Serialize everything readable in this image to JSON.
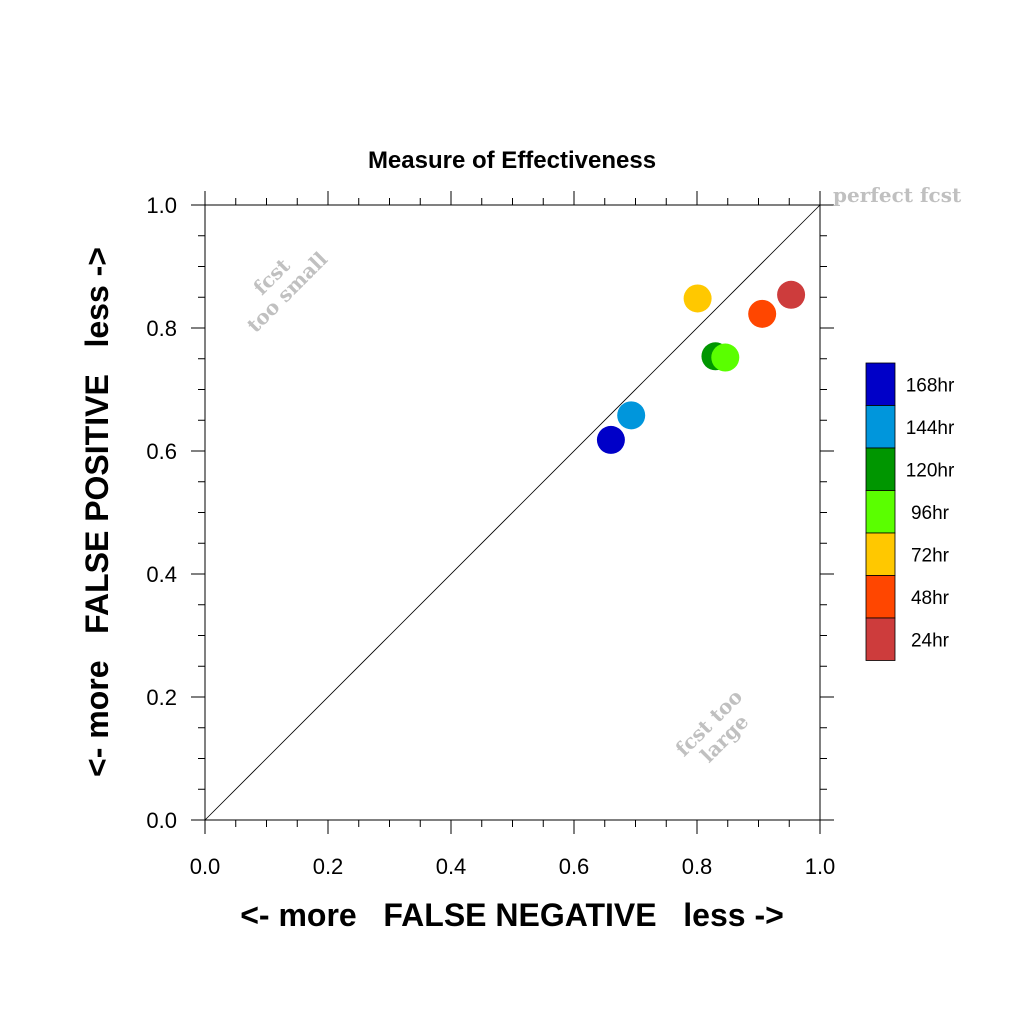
{
  "chart_data": {
    "type": "scatter",
    "title": "Measure of Effectiveness",
    "xlabel": "<- more   FALSE NEGATIVE   less ->",
    "ylabel": "<- more   FALSE POSITIVE   less ->",
    "xlim": [
      0,
      1
    ],
    "ylim": [
      0,
      1
    ],
    "xticks": [
      "0.0",
      "0.2",
      "0.4",
      "0.6",
      "0.8",
      "1.0"
    ],
    "yticks": [
      "0.0",
      "0.2",
      "0.4",
      "0.6",
      "0.8",
      "1.0"
    ],
    "reference_line": "y = x",
    "grid": false,
    "legend_position": "right",
    "annotations": {
      "perfect": "perfect fcst",
      "too_small": [
        "fcst",
        "too small"
      ],
      "too_large": [
        "fcst too",
        "large"
      ]
    },
    "series": [
      {
        "name": "168hr",
        "color": "#0000c8",
        "x": 0.66,
        "y": 0.618
      },
      {
        "name": "144hr",
        "color": "#0096dc",
        "x": 0.693,
        "y": 0.658
      },
      {
        "name": "120hr",
        "color": "#009600",
        "x": 0.83,
        "y": 0.754
      },
      {
        "name": "96hr",
        "color": "#5aff00",
        "x": 0.846,
        "y": 0.752
      },
      {
        "name": "72hr",
        "color": "#ffc800",
        "x": 0.801,
        "y": 0.848
      },
      {
        "name": "48hr",
        "color": "#ff4600",
        "x": 0.906,
        "y": 0.823
      },
      {
        "name": "24hr",
        "color": "#cd3c3c",
        "x": 0.953,
        "y": 0.854
      }
    ],
    "legend_order": [
      "168hr",
      "144hr",
      "120hr",
      "96hr",
      "72hr",
      "48hr",
      "24hr"
    ]
  }
}
